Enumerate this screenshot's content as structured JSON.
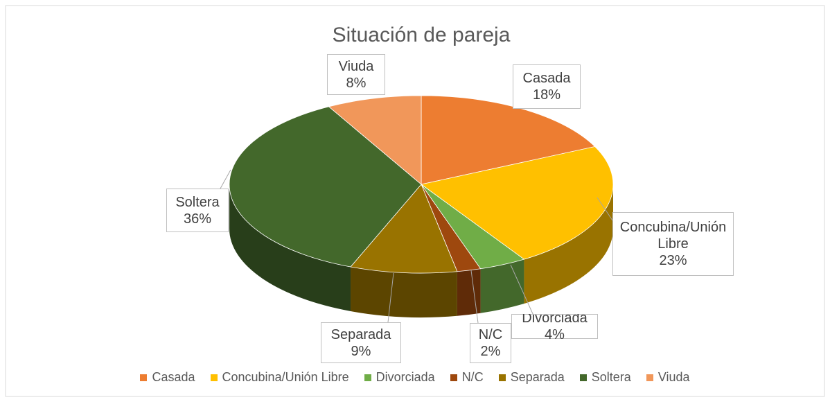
{
  "chart_data": {
    "type": "pie3d",
    "title": "Situación de pareja",
    "categories": [
      "Casada",
      "Concubina/Unión Libre",
      "Divorciada",
      "N/C",
      "Separada",
      "Soltera",
      "Viuda"
    ],
    "values": [
      18,
      23,
      4,
      2,
      9,
      36,
      8
    ],
    "value_labels": [
      "18%",
      "23%",
      "4%",
      "2%",
      "9%",
      "36%",
      "8%"
    ],
    "colors": [
      "#ed7d31",
      "#ffc000",
      "#70ad47",
      "#9e480e",
      "#997300",
      "#43682b",
      "#f1975a"
    ],
    "legend": "bottom"
  }
}
